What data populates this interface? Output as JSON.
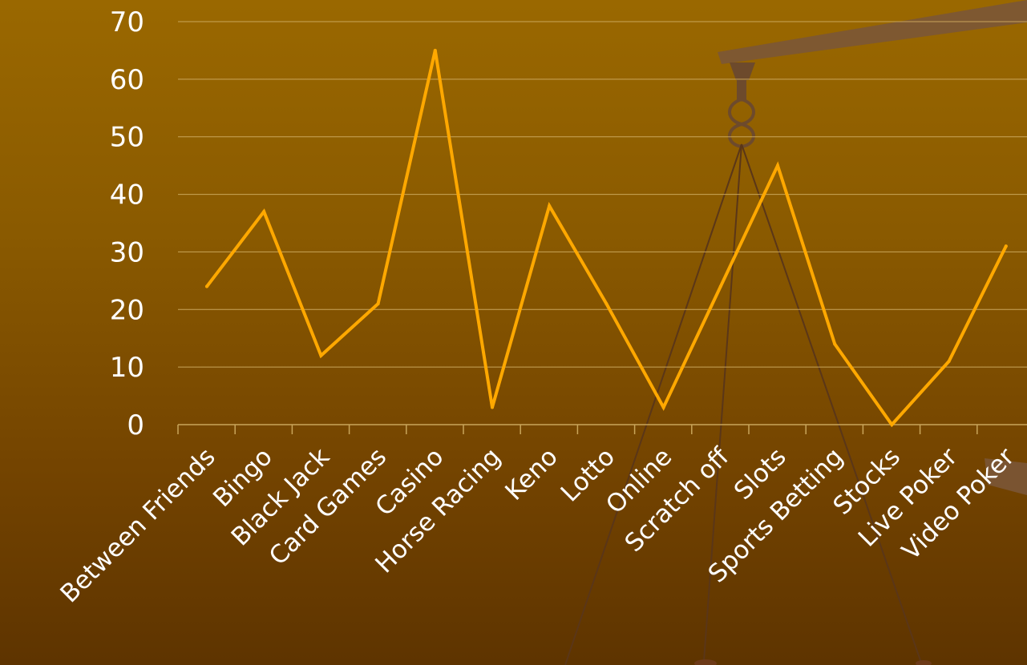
{
  "chart_data": {
    "type": "line",
    "title": "",
    "xlabel": "",
    "ylabel": "",
    "categories": [
      "Between Friends",
      "Bingo",
      "Black Jack",
      "Card Games",
      "Casino",
      "Horse Racing",
      "Keno",
      "Lotto",
      "Online",
      "Scratch off",
      "Slots",
      "Sports Betting",
      "Stocks",
      "Live Poker",
      "Video Poker"
    ],
    "series": [
      {
        "values": [
          24,
          37,
          12,
          21,
          65,
          3,
          38,
          21,
          3,
          24,
          45,
          14,
          0,
          11,
          31
        ]
      }
    ],
    "ylim": [
      0,
      70
    ],
    "yticks": [
      "0",
      "10",
      "20",
      "30",
      "40",
      "50",
      "60",
      "70"
    ],
    "grid": true,
    "legend": "none"
  },
  "colors": {
    "line": "#ffa800",
    "grid": "#c9a55a",
    "text": "#ffffff",
    "scale_beam": "#7a5a3a",
    "scale_string": "#5a3618"
  },
  "decoration": {
    "description_icon": "balance-scale-icon"
  }
}
